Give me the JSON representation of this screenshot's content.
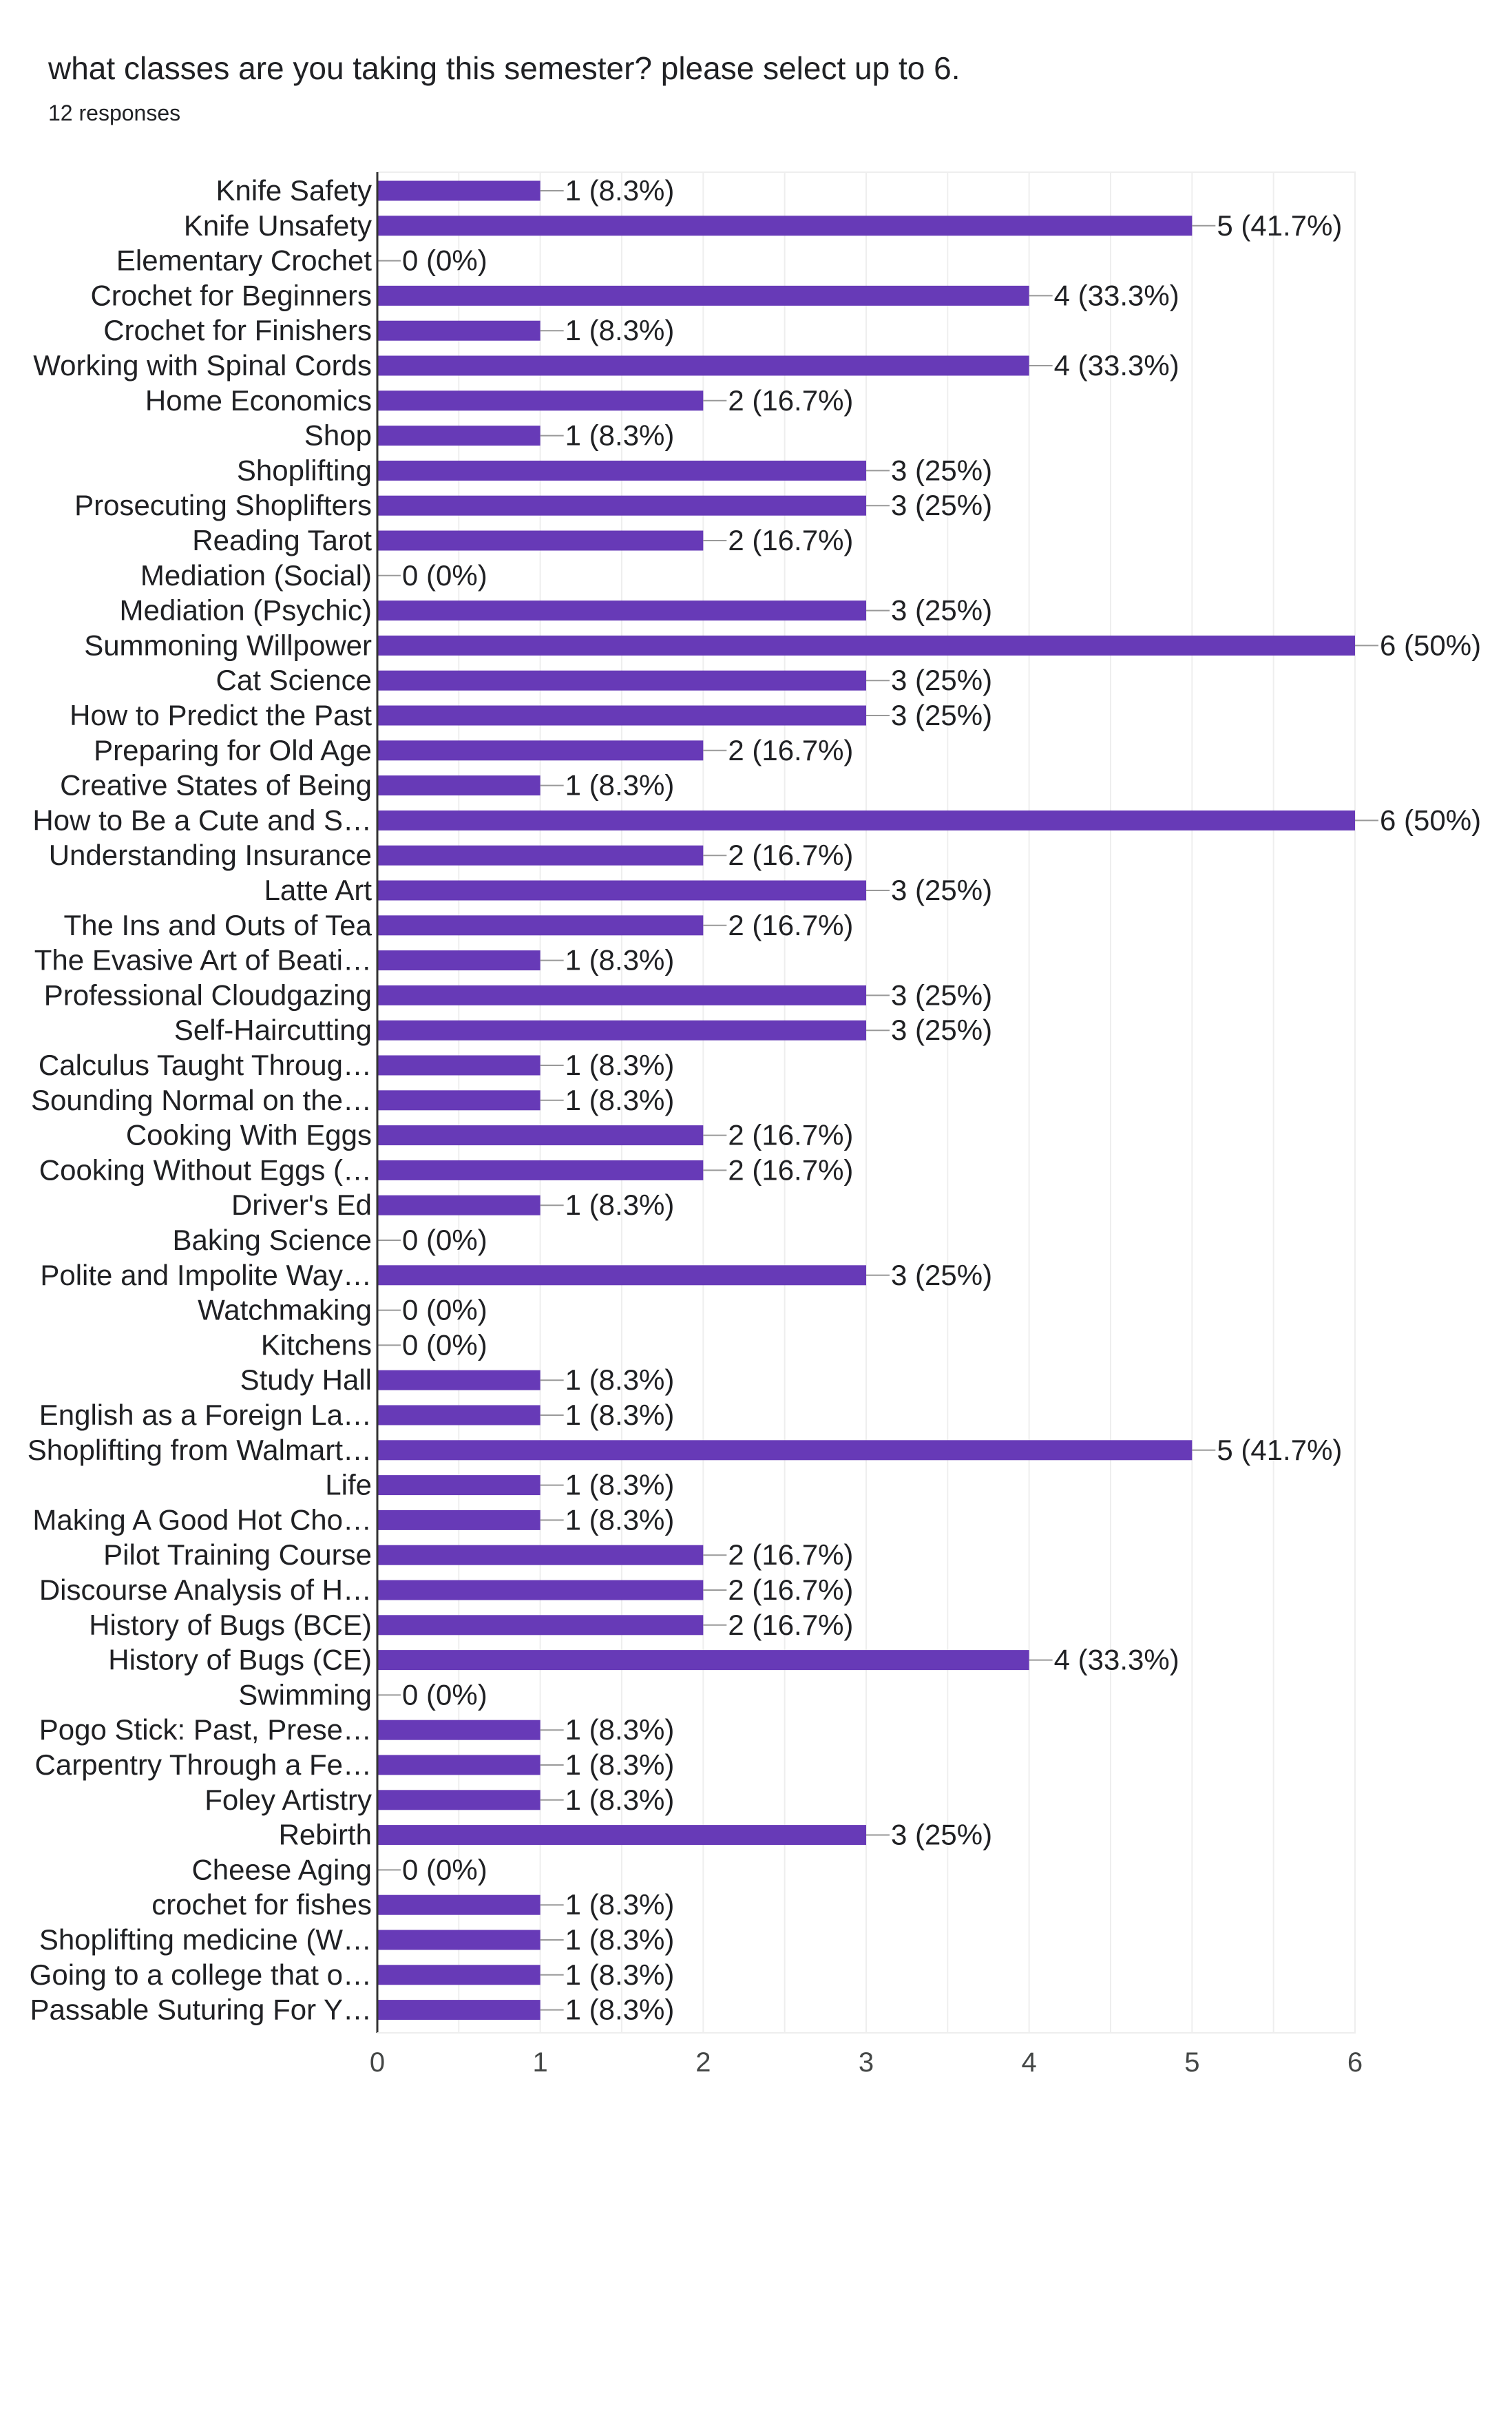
{
  "question": {
    "title": "what classes are you taking this semester? please select up to 6.",
    "responses": "12 responses"
  },
  "colors": {
    "bar": "#673ab7",
    "grid": "#eeeeee",
    "axis": "#333333",
    "leader": "#999999"
  },
  "chart_data": {
    "type": "bar",
    "orientation": "horizontal",
    "xlim": [
      0,
      6
    ],
    "x_ticks": [
      "0",
      "1",
      "2",
      "3",
      "4",
      "5",
      "6"
    ],
    "grid": true,
    "categories": [
      "Knife Safety",
      "Knife Unsafety",
      "Elementary Crochet",
      "Crochet for Beginners",
      "Crochet for Finishers",
      "Working with Spinal Cords",
      "Home Economics",
      "Shop",
      "Shoplifting",
      "Prosecuting Shoplifters",
      "Reading Tarot",
      "Mediation (Social)",
      "Mediation (Psychic)",
      "Summoning Willpower",
      "Cat Science",
      "How to Predict the Past",
      "Preparing for Old Age",
      "Creative States of Being",
      "How to Be a Cute and S…",
      "Understanding Insurance",
      "Latte Art",
      "The Ins and Outs of Tea",
      "The Evasive Art of Beati…",
      "Professional Cloudgazing",
      "Self-Haircutting",
      "Calculus Taught Throug…",
      "Sounding Normal on the…",
      "Cooking With Eggs",
      "Cooking Without Eggs (…",
      "Driver's Ed",
      "Baking Science",
      "Polite and Impolite Way…",
      "Watchmaking",
      "Kitchens",
      "Study Hall",
      "English as a Foreign La…",
      "Shoplifting from Walmart…",
      "Life",
      "Making A Good Hot Cho…",
      "Pilot Training Course",
      "Discourse Analysis of H…",
      "History of Bugs (BCE)",
      "History of Bugs (CE)",
      "Swimming",
      "Pogo Stick: Past, Prese…",
      "Carpentry Through a Fe…",
      "Foley Artistry",
      "Rebirth",
      "Cheese Aging",
      "crochet for fishes",
      "Shoplifting medicine (W…",
      "Going to a college that o…",
      "Passable Suturing For Y…"
    ],
    "values": [
      1,
      5,
      0,
      4,
      1,
      4,
      2,
      1,
      3,
      3,
      2,
      0,
      3,
      6,
      3,
      3,
      2,
      1,
      6,
      2,
      3,
      2,
      1,
      3,
      3,
      1,
      1,
      2,
      2,
      1,
      0,
      3,
      0,
      0,
      1,
      1,
      5,
      1,
      1,
      2,
      2,
      2,
      4,
      0,
      1,
      1,
      1,
      3,
      0,
      1,
      1,
      1,
      1
    ],
    "value_labels": [
      "1 (8.3%)",
      "5 (41.7%)",
      "0 (0%)",
      "4 (33.3%)",
      "1 (8.3%)",
      "4 (33.3%)",
      "2 (16.7%)",
      "1 (8.3%)",
      "3 (25%)",
      "3 (25%)",
      "2 (16.7%)",
      "0 (0%)",
      "3 (25%)",
      "6 (50%)",
      "3 (25%)",
      "3 (25%)",
      "2 (16.7%)",
      "1 (8.3%)",
      "6 (50%)",
      "2 (16.7%)",
      "3 (25%)",
      "2 (16.7%)",
      "1 (8.3%)",
      "3 (25%)",
      "3 (25%)",
      "1 (8.3%)",
      "1 (8.3%)",
      "2 (16.7%)",
      "2 (16.7%)",
      "1 (8.3%)",
      "0 (0%)",
      "3 (25%)",
      "0 (0%)",
      "0 (0%)",
      "1 (8.3%)",
      "1 (8.3%)",
      "5 (41.7%)",
      "1 (8.3%)",
      "1 (8.3%)",
      "2 (16.7%)",
      "2 (16.7%)",
      "2 (16.7%)",
      "4 (33.3%)",
      "0 (0%)",
      "1 (8.3%)",
      "1 (8.3%)",
      "1 (8.3%)",
      "3 (25%)",
      "0 (0%)",
      "1 (8.3%)",
      "1 (8.3%)",
      "1 (8.3%)",
      "1 (8.3%)"
    ]
  }
}
